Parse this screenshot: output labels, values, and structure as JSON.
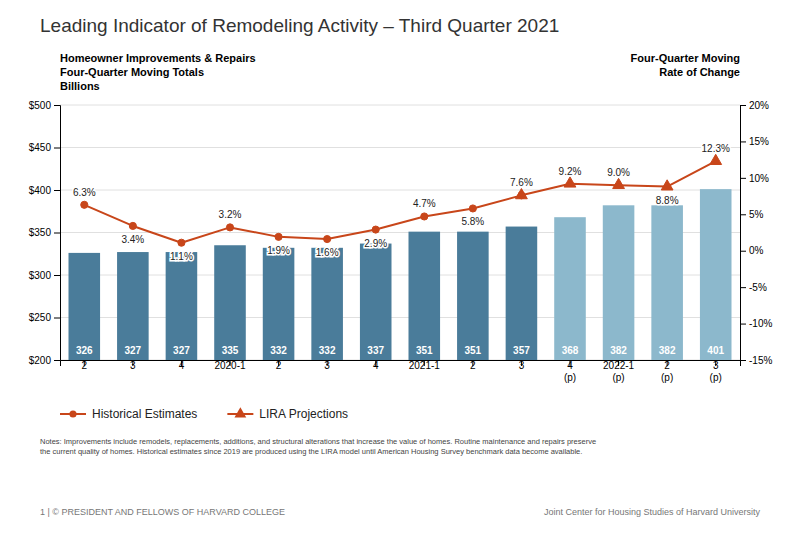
{
  "chart_data": {
    "type": "bar",
    "title": "Leading Indicator of Remodeling Activity – Third Quarter 2021",
    "ylabel": [
      "Homeowner Improvements & Repairs",
      "Four-Quarter Moving Totals",
      "Billions"
    ],
    "y2label": [
      "Four-Quarter Moving",
      "Rate of Change"
    ],
    "categories": [
      "2",
      "3",
      "4",
      "2020-1",
      "2",
      "3",
      "4",
      "2021-1",
      "2",
      "3",
      "4\n(p)",
      "2022-1\n(p)",
      "2\n(p)",
      "3\n(p)"
    ],
    "series": [
      {
        "type": "bar",
        "values": [
          326,
          327,
          327,
          335,
          332,
          332,
          337,
          351,
          351,
          357,
          368,
          382,
          382,
          401
        ],
        "colors": [
          "#4a7c9a",
          "#4a7c9a",
          "#4a7c9a",
          "#4a7c9a",
          "#4a7c9a",
          "#4a7c9a",
          "#4a7c9a",
          "#4a7c9a",
          "#4a7c9a",
          "#4a7c9a",
          "#8cb8cc",
          "#8cb8cc",
          "#8cb8cc",
          "#8cb8cc"
        ],
        "data_labels": true
      },
      {
        "type": "line",
        "name": "Historical Estimates",
        "axis": "y2",
        "color": "#c8461a",
        "marker": "circle",
        "values": [
          6.3,
          3.4,
          1.1,
          3.2,
          1.9,
          1.6,
          2.9,
          4.7,
          5.8,
          7.6,
          null,
          null,
          null,
          null
        ],
        "value_labels": [
          "6.3%",
          "3.4%",
          "1.1%",
          "3.2%",
          "1.9%",
          "1.6%",
          "2.9%",
          "4.7%",
          "5.8%",
          "7.6%",
          null,
          null,
          null,
          null
        ],
        "data_labels": true
      },
      {
        "type": "line",
        "name": "LIRA Projections",
        "axis": "y2",
        "color": "#c8461a",
        "marker": "triangle",
        "values": [
          null,
          null,
          null,
          null,
          null,
          null,
          null,
          null,
          null,
          7.6,
          9.2,
          9.0,
          8.8,
          12.3
        ],
        "value_labels": [
          null,
          null,
          null,
          null,
          null,
          null,
          null,
          null,
          null,
          null,
          "9.2%",
          "9.0%",
          "8.8%",
          "12.3%"
        ],
        "data_labels": true
      }
    ],
    "ylim": [
      200,
      500
    ],
    "yticks": [
      {
        "value": 200,
        "label": "$200"
      },
      {
        "value": 250,
        "label": "$250"
      },
      {
        "value": 300,
        "label": "$300"
      },
      {
        "value": 350,
        "label": "$350"
      },
      {
        "value": 400,
        "label": "$400"
      },
      {
        "value": 450,
        "label": "$450"
      },
      {
        "value": 500,
        "label": "$500"
      }
    ],
    "y2lim": [
      -15,
      20
    ],
    "y2ticks": [
      {
        "value": -15,
        "label": "-15%"
      },
      {
        "value": -10,
        "label": "-10%"
      },
      {
        "value": -5,
        "label": "-5%"
      },
      {
        "value": 0,
        "label": "0%"
      },
      {
        "value": 5,
        "label": "5%"
      },
      {
        "value": 10,
        "label": "10%"
      },
      {
        "value": 15,
        "label": "15%"
      },
      {
        "value": 20,
        "label": "20%"
      }
    ],
    "grid": true,
    "legend": "lower left",
    "note": "Notes: Improvements include remodels, replacements, additions, and structural alterations that increase the value of homes. Routine maintenance and repairs preserve\nthe current quality of homes. Historical estimates since 2019 are produced using the LIRA model until American Housing Survey benchmark data become available.",
    "footer_left": "1  |  © PRESIDENT AND FELLOWS OF HARVARD COLLEGE",
    "footer_right": "Joint Center for Housing Studies of Harvard University"
  }
}
